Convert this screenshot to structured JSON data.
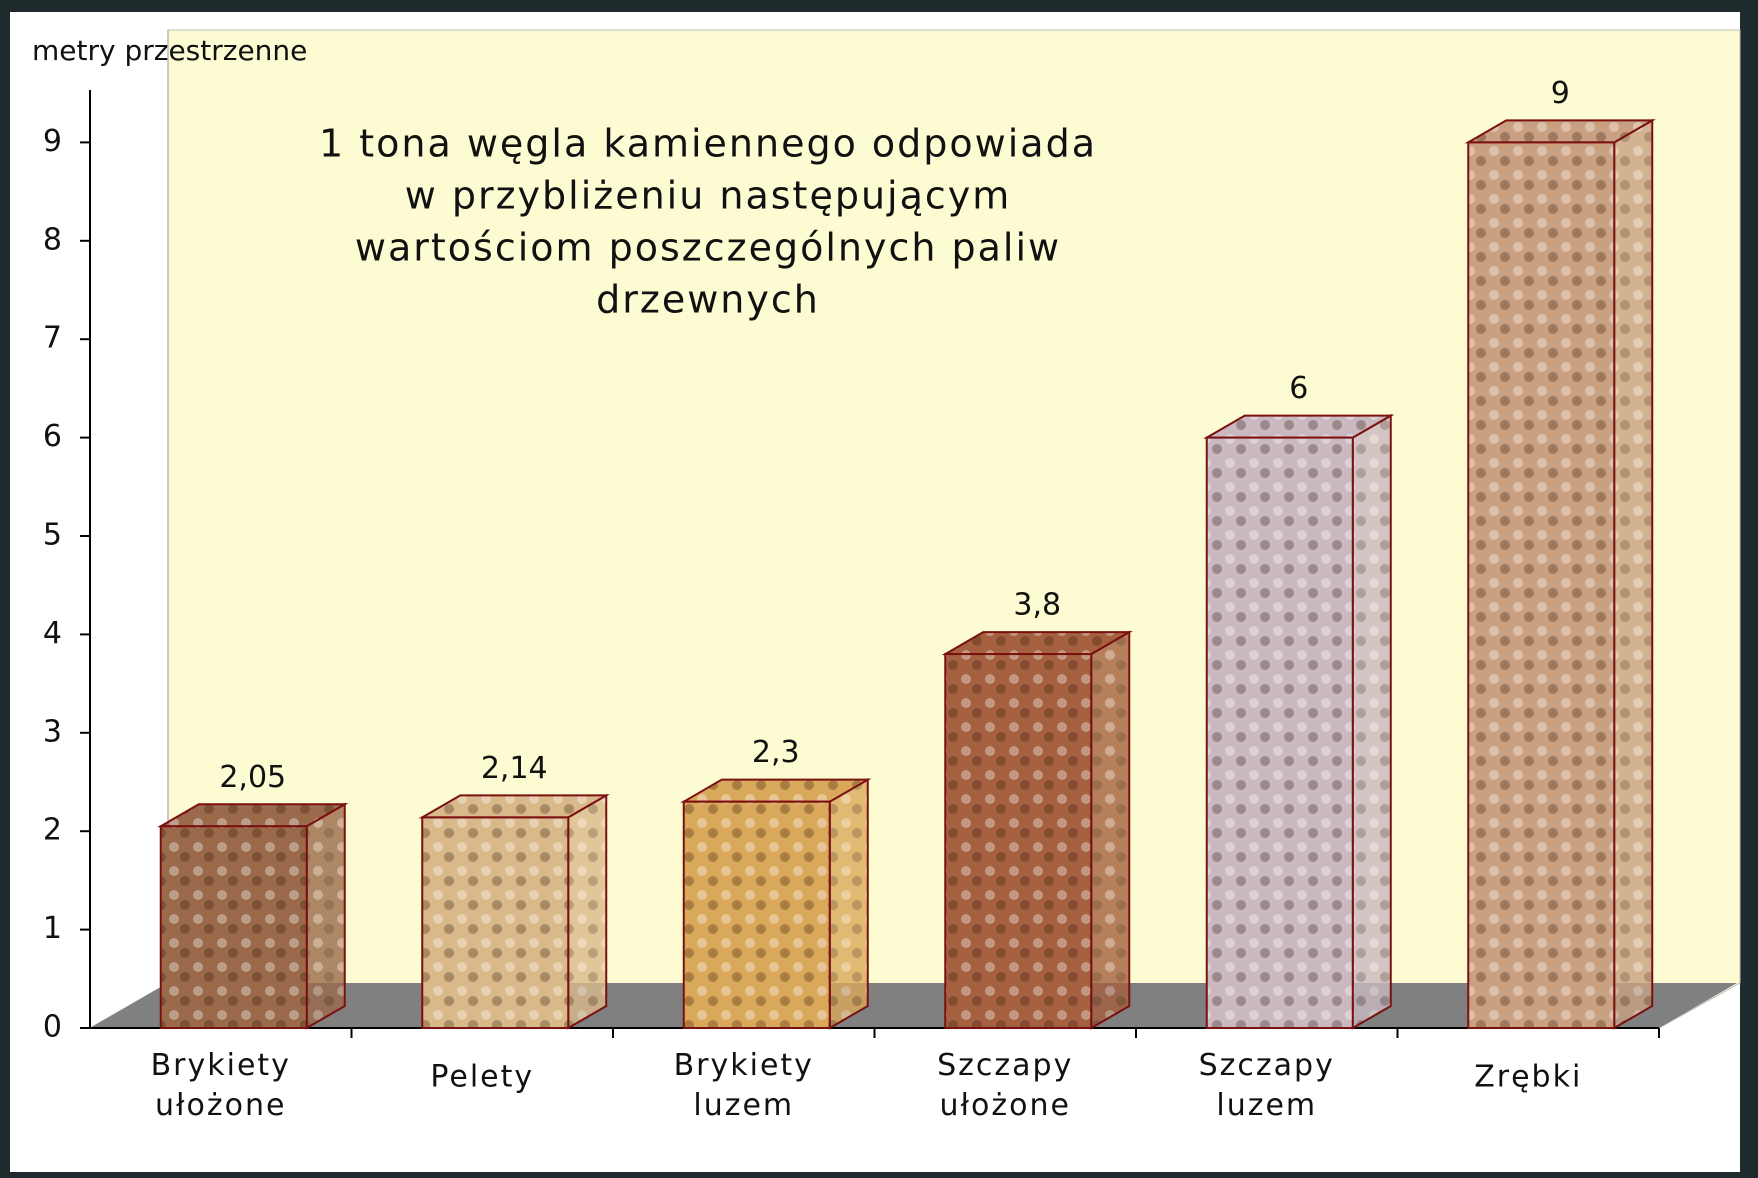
{
  "chart_data": {
    "type": "bar3d",
    "annotation": [
      "1 tona węgla kamiennego odpowiada",
      "w przybliżeniu następującym",
      "wartościom poszczególnych paliw",
      "drzewnych"
    ],
    "y_label": "metry przestrzenne",
    "categories": [
      "Brykiety ułożone",
      "Pelety",
      "Brykiety luzem",
      "Szczapy ułożone",
      "Szczapy luzem",
      "Zrębki"
    ],
    "values": [
      2.05,
      2.14,
      2.3,
      3.8,
      6,
      9
    ],
    "value_labels": [
      "2,05",
      "2,14",
      "2,3",
      "3,8",
      "6",
      "9"
    ],
    "colors": [
      "#9a6a4a",
      "#d9b98a",
      "#d9a85a",
      "#a4603f",
      "#c9b8c0",
      "#c9a080"
    ],
    "ylim": [
      0,
      10
    ],
    "yticks": [
      0,
      1,
      2,
      3,
      4,
      5,
      6,
      7,
      8,
      9
    ]
  }
}
